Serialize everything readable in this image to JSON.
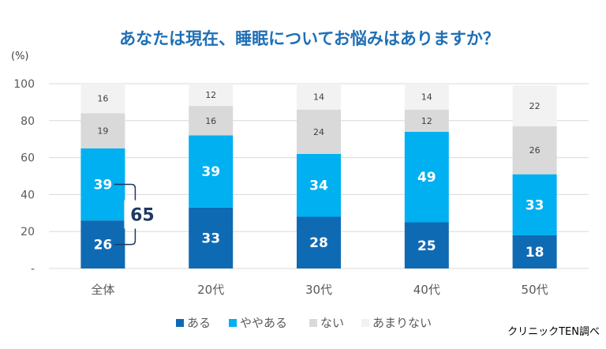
{
  "chart_data": {
    "type": "bar",
    "stacked": true,
    "title": "あなたは現在、睡眠についてお悩みはありますか？",
    "yunit": "(%)",
    "ylim": [
      0,
      100
    ],
    "yticks": [
      {
        "value": 0,
        "label": "-"
      },
      {
        "value": 20,
        "label": "20"
      },
      {
        "value": 40,
        "label": "40"
      },
      {
        "value": 60,
        "label": "60"
      },
      {
        "value": 80,
        "label": "80"
      },
      {
        "value": 100,
        "label": "100"
      }
    ],
    "grid": true,
    "legend": "bottom",
    "categories": [
      "全体",
      "20代",
      "30代",
      "40代",
      "50代"
    ],
    "series": [
      {
        "name": "ある",
        "color": "#0f6ab4",
        "values": [
          26,
          33,
          28,
          25,
          18
        ]
      },
      {
        "name": "ややある",
        "color": "#00b0f0",
        "values": [
          39,
          39,
          34,
          49,
          33
        ]
      },
      {
        "name": "ない",
        "color": "#d9d9d9",
        "values": [
          19,
          16,
          24,
          12,
          26
        ]
      },
      {
        "name": "あまりない",
        "color": "#f2f2f2",
        "values": [
          16,
          12,
          14,
          14,
          22
        ]
      }
    ],
    "annotation": {
      "label": "65",
      "category": "全体",
      "series_span": [
        "ある",
        "ややある"
      ]
    },
    "source": "クリニックTEN調べ",
    "colors": {
      "title": "#1f6fb5",
      "axis_text": "#595959",
      "annotation": "#1f3864",
      "grid": "#d9d9d9"
    }
  }
}
